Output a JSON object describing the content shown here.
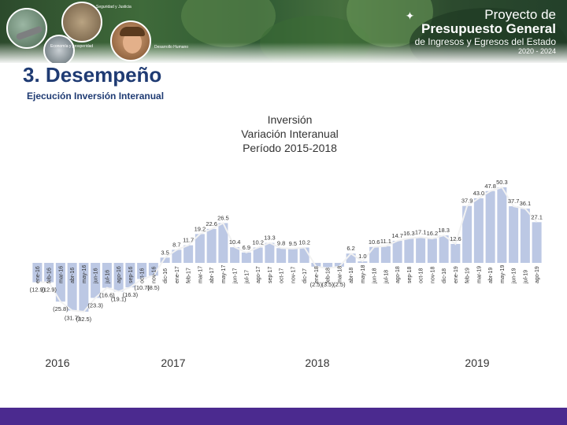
{
  "header": {
    "labels": [
      "Seguridad y Justicia",
      "Economía y prosperidad",
      "Desarrollo Humano"
    ],
    "logo": {
      "line1": "Proyecto de",
      "line2": "Presupuesto General",
      "line3": "de Ingresos y Egresos del Estado",
      "line4": "2020 - 2024"
    }
  },
  "section": {
    "number": "3.",
    "title": "Desempeño"
  },
  "subtitle": "Ejecución Inversión Interanual",
  "chart_title": [
    "Inversión",
    "Variación Interanual",
    "Período 2015-2018"
  ],
  "colors": {
    "bar": "#bcc8e4",
    "line": "#f2f2f2",
    "text": "#333333",
    "title_blue": "#1f3b73",
    "footer": "#4b2a8f"
  },
  "chart_data": {
    "type": "area",
    "categories": [
      "ene-16",
      "feb-16",
      "mar-16",
      "abr-16",
      "may-16",
      "jun-16",
      "jul-16",
      "ago-16",
      "sep-16",
      "oct-16",
      "nov-16",
      "dic-16",
      "ene-17",
      "feb-17",
      "mar-17",
      "abr-17",
      "may-17",
      "jun-17",
      "jul-17",
      "ago-17",
      "sep-17",
      "oct-17",
      "nov-17",
      "dic-17",
      "ene-18",
      "feb-18",
      "mar-18",
      "abr-18",
      "may-18",
      "jun-18",
      "jul-18",
      "ago-18",
      "sep-18",
      "oct-18",
      "nov-18",
      "dic-18",
      "ene-19",
      "feb-19",
      "mar-19",
      "abr-19",
      "may-19",
      "jun-19",
      "jul-19",
      "ago-19"
    ],
    "values": [
      -12.9,
      -12.9,
      -25.8,
      -31.7,
      -32.5,
      -23.3,
      -16.6,
      -19.1,
      -16.3,
      -10.7,
      -8.5,
      3.5,
      8.7,
      11.7,
      19.2,
      22.6,
      26.5,
      10.4,
      6.9,
      10.2,
      13.3,
      9.8,
      9.5,
      10.2,
      -2.5,
      -3.5,
      -2.5,
      6.2,
      1.0,
      10.6,
      11.1,
      14.7,
      16.3,
      17.1,
      16.2,
      18.3,
      12.6,
      37.9,
      43.0,
      47.8,
      50.3,
      37.7,
      36.1,
      27.1
    ],
    "labels": [
      "(12.9)",
      "(12.9)",
      "(25.8)",
      "(31.7)",
      "(32.5)",
      "(23.3)",
      "(16.6)",
      "(19.1)",
      "(16.3)",
      "(10.7)",
      "(8.5)",
      "3.5",
      "8.7",
      "11.7",
      "19.2",
      "22.6",
      "26.5",
      "10.4",
      "6.9",
      "10.2",
      "13.3",
      "9.8",
      "9.5",
      "10.2",
      "(2.5)",
      "(3.5)",
      "(2.5)",
      "6.2",
      "1.0",
      "10.6",
      "11.1",
      "14.7",
      "16.3",
      "17.1",
      "16.2",
      "18.3",
      "12.6",
      "37.9",
      "43.0",
      "47.8",
      "50.3",
      "37.7",
      "36.1",
      "27.1"
    ],
    "year_labels": [
      "2016",
      "2017",
      "2018",
      "2019"
    ],
    "ylim": [
      -35,
      55
    ],
    "grid": false
  }
}
